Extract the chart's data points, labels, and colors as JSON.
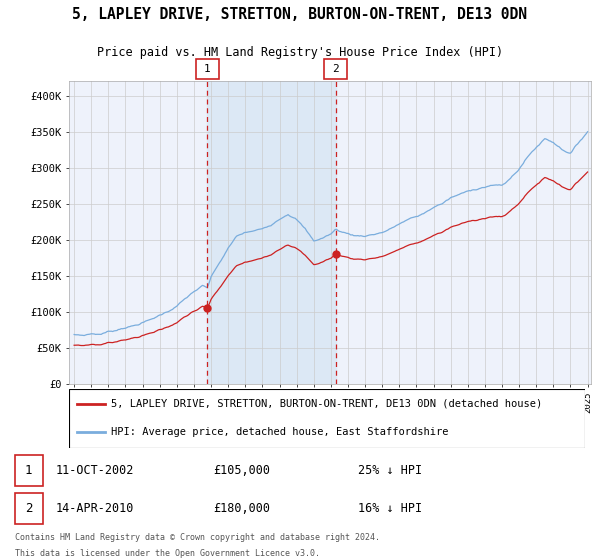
{
  "title1": "5, LAPLEY DRIVE, STRETTON, BURTON-ON-TRENT, DE13 0DN",
  "title2": "Price paid vs. HM Land Registry's House Price Index (HPI)",
  "legend_line1": "5, LAPLEY DRIVE, STRETTON, BURTON-ON-TRENT, DE13 0DN (detached house)",
  "legend_line2": "HPI: Average price, detached house, East Staffordshire",
  "sale1_label": "1",
  "sale2_label": "2",
  "sale1_date": "11-OCT-2002",
  "sale1_price": 105000,
  "sale1_price_str": "£105,000",
  "sale1_pct": "25% ↓ HPI",
  "sale2_date": "14-APR-2010",
  "sale2_price": 180000,
  "sale2_price_str": "£180,000",
  "sale2_pct": "16% ↓ HPI",
  "footer1": "Contains HM Land Registry data © Crown copyright and database right 2024.",
  "footer2": "This data is licensed under the Open Government Licence v3.0.",
  "background_color": "#ffffff",
  "plot_bg_color": "#eef2fb",
  "grid_color": "#cccccc",
  "hpi_color": "#7aaddd",
  "price_color": "#cc2222",
  "highlight_color": "#dce8f5",
  "vline_color": "#cc2222",
  "ylim": [
    0,
    420000
  ],
  "yticks": [
    0,
    50000,
    100000,
    150000,
    200000,
    250000,
    300000,
    350000,
    400000
  ],
  "ytick_labels": [
    "£0",
    "£50K",
    "£100K",
    "£150K",
    "£200K",
    "£250K",
    "£300K",
    "£350K",
    "£400K"
  ],
  "sale1_year": 2002.78,
  "sale2_year": 2010.28,
  "start_year": 1995,
  "end_year": 2025
}
